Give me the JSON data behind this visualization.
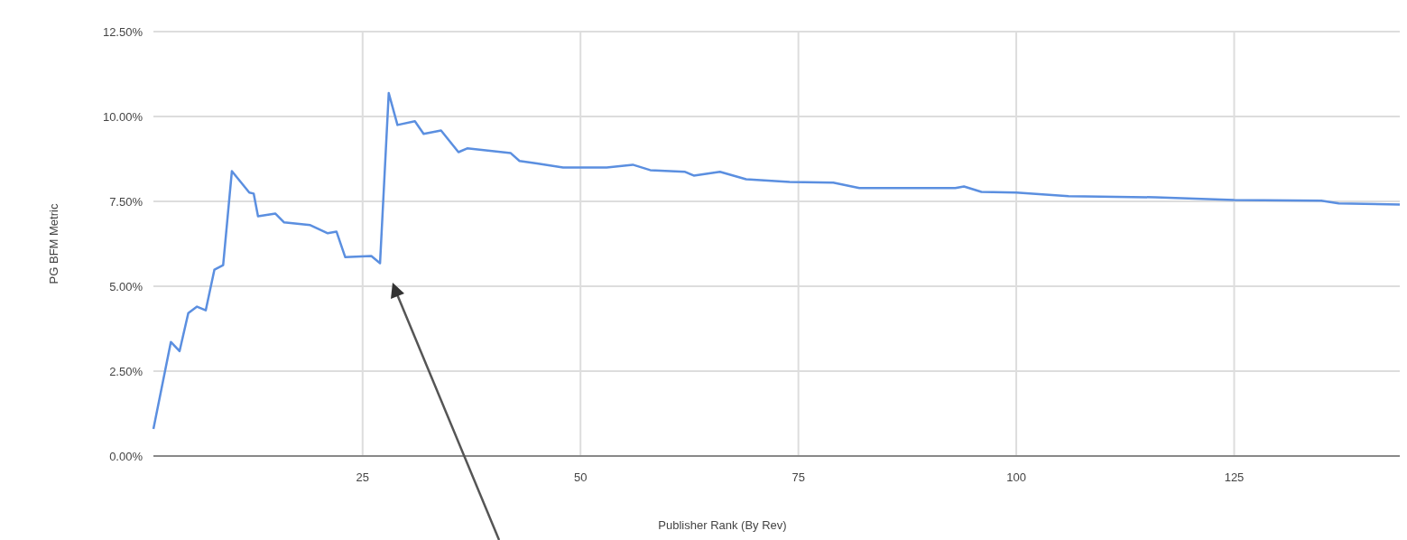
{
  "chart_data": {
    "type": "line",
    "xlabel": "Publisher Rank (By Rev)",
    "ylabel": "PG BFM Metric",
    "xlim": [
      1,
      144
    ],
    "xticks": [
      25,
      50,
      75,
      100,
      125
    ],
    "ylim": [
      0,
      12.5
    ],
    "yticks": [
      {
        "value": 0,
        "label": "0.00%"
      },
      {
        "value": 2.5,
        "label": "2.50%"
      },
      {
        "value": 5,
        "label": "5.00%"
      },
      {
        "value": 7.5,
        "label": "7.50%"
      },
      {
        "value": 10,
        "label": "10.00%"
      },
      {
        "value": 12.5,
        "label": "12.50%"
      }
    ],
    "grid": true,
    "series": [
      {
        "color": "#5b8fe0",
        "x": [
          1,
          3,
          4,
          5,
          6,
          7,
          8,
          9,
          10,
          12,
          12.5,
          13,
          15,
          16,
          19,
          21,
          22,
          23,
          26,
          27,
          28,
          29,
          31,
          32,
          34,
          36,
          37,
          42,
          43,
          45,
          48,
          50,
          53,
          56,
          58,
          62,
          63,
          66,
          69,
          74,
          79,
          82,
          93,
          94,
          96,
          100,
          106,
          116,
          125,
          135,
          137,
          144
        ],
        "values": [
          0.8,
          3.36,
          3.09,
          4.21,
          4.4,
          4.29,
          5.49,
          5.62,
          8.39,
          7.76,
          7.73,
          7.06,
          7.14,
          6.88,
          6.8,
          6.56,
          6.61,
          5.86,
          5.89,
          5.68,
          10.69,
          9.75,
          9.86,
          9.49,
          9.59,
          8.95,
          9.06,
          8.92,
          8.69,
          8.62,
          8.5,
          8.5,
          8.5,
          8.58,
          8.42,
          8.37,
          8.26,
          8.37,
          8.15,
          8.07,
          8.05,
          7.89,
          7.89,
          7.94,
          7.78,
          7.76,
          7.65,
          7.62,
          7.54,
          7.52,
          7.44,
          7.41
        ]
      }
    ]
  }
}
